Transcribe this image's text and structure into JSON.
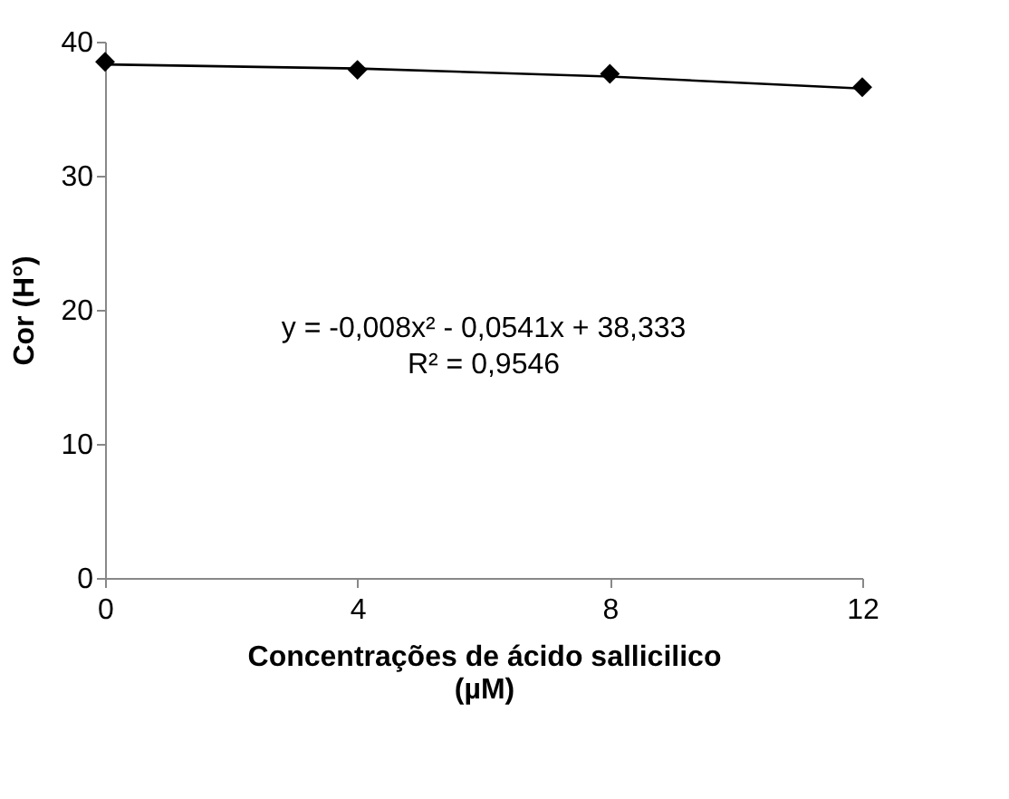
{
  "chart_data": {
    "type": "scatter",
    "xlabel": "Concentrações de ácido sallicilico\n(µM)",
    "ylabel": "Cor (H°)",
    "x": [
      0,
      4,
      8,
      12
    ],
    "xlim": [
      0,
      12
    ],
    "xticks": [
      0,
      4,
      8,
      12
    ],
    "ylim": [
      0,
      40
    ],
    "yticks": [
      0,
      10,
      20,
      30,
      40
    ],
    "series": [
      {
        "color": "#000000",
        "marker": "diamond",
        "values": [
          38.5,
          37.9,
          37.6,
          36.6
        ]
      },
      {
        "type": "line",
        "color": "#000000",
        "line_style": "solid",
        "marker": "none",
        "x": [
          0,
          4,
          8,
          12
        ],
        "values": [
          38.3,
          38.0,
          37.4,
          36.5
        ]
      }
    ],
    "annotations": [
      "y = -0,008x² - 0,0541x + 38,333\nR² = 0,9546"
    ],
    "grid": false
  }
}
